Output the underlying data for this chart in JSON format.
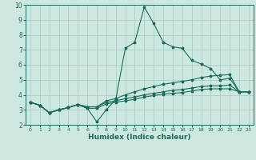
{
  "title": "",
  "xlabel": "Humidex (Indice chaleur)",
  "ylabel": "",
  "xlim": [
    -0.5,
    23.5
  ],
  "ylim": [
    2,
    10
  ],
  "xticks": [
    0,
    1,
    2,
    3,
    4,
    5,
    6,
    7,
    8,
    9,
    10,
    11,
    12,
    13,
    14,
    15,
    16,
    17,
    18,
    19,
    20,
    21,
    22,
    23
  ],
  "yticks": [
    2,
    3,
    4,
    5,
    6,
    7,
    8,
    9,
    10
  ],
  "bg_color": "#cce8e0",
  "grid_color": "#aacfc7",
  "line_color": "#1a6b5a",
  "lines": [
    {
      "x": [
        0,
        1,
        2,
        3,
        4,
        5,
        6,
        7,
        8,
        9,
        10,
        11,
        12,
        13,
        14,
        15,
        16,
        17,
        18,
        19,
        20,
        21,
        22,
        23
      ],
      "y": [
        3.5,
        3.3,
        2.8,
        3.0,
        3.15,
        3.35,
        3.1,
        2.2,
        3.0,
        3.7,
        7.1,
        7.5,
        9.85,
        8.75,
        7.5,
        7.2,
        7.1,
        6.3,
        6.05,
        5.75,
        5.0,
        5.1,
        4.2,
        4.2
      ]
    },
    {
      "x": [
        0,
        1,
        2,
        3,
        4,
        5,
        6,
        7,
        8,
        9,
        10,
        11,
        12,
        13,
        14,
        15,
        16,
        17,
        18,
        19,
        20,
        21,
        22,
        23
      ],
      "y": [
        3.5,
        3.3,
        2.8,
        3.0,
        3.15,
        3.35,
        3.2,
        3.2,
        3.6,
        3.75,
        4.0,
        4.2,
        4.4,
        4.55,
        4.7,
        4.8,
        4.9,
        5.0,
        5.15,
        5.25,
        5.3,
        5.35,
        4.2,
        4.2
      ]
    },
    {
      "x": [
        0,
        1,
        2,
        3,
        4,
        5,
        6,
        7,
        8,
        9,
        10,
        11,
        12,
        13,
        14,
        15,
        16,
        17,
        18,
        19,
        20,
        21,
        22,
        23
      ],
      "y": [
        3.5,
        3.3,
        2.8,
        3.0,
        3.15,
        3.35,
        3.2,
        3.2,
        3.5,
        3.6,
        3.75,
        3.85,
        4.0,
        4.1,
        4.2,
        4.3,
        4.35,
        4.45,
        4.55,
        4.6,
        4.6,
        4.65,
        4.2,
        4.2
      ]
    },
    {
      "x": [
        0,
        1,
        2,
        3,
        4,
        5,
        6,
        7,
        8,
        9,
        10,
        11,
        12,
        13,
        14,
        15,
        16,
        17,
        18,
        19,
        20,
        21,
        22,
        23
      ],
      "y": [
        3.5,
        3.3,
        2.8,
        3.0,
        3.15,
        3.35,
        3.1,
        3.1,
        3.4,
        3.5,
        3.6,
        3.7,
        3.85,
        3.95,
        4.05,
        4.1,
        4.15,
        4.25,
        4.35,
        4.4,
        4.4,
        4.4,
        4.2,
        4.2
      ]
    }
  ]
}
